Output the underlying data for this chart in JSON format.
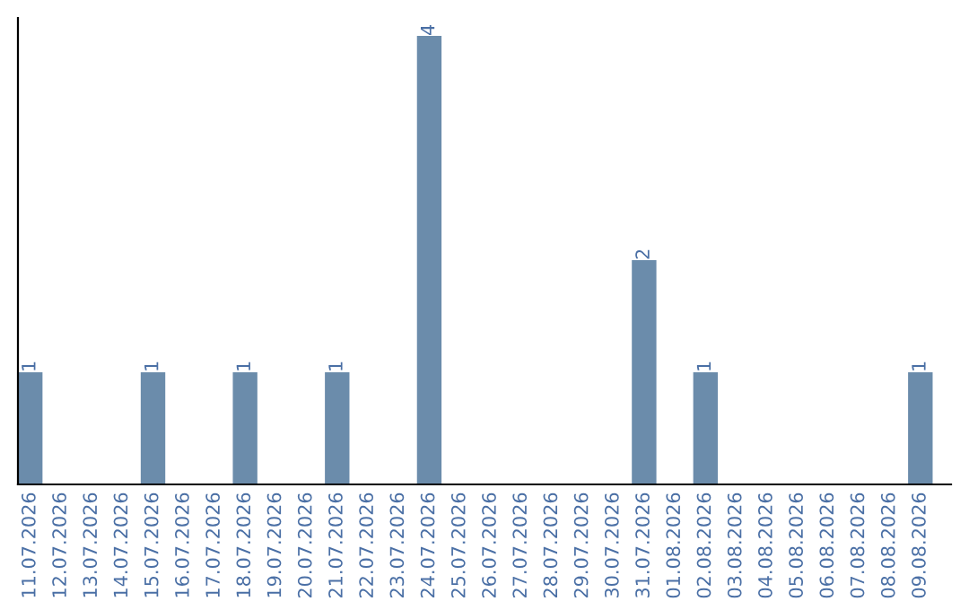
{
  "chart_data": {
    "type": "bar",
    "categories": [
      "11.07.2026",
      "12.07.2026",
      "13.07.2026",
      "14.07.2026",
      "15.07.2026",
      "16.07.2026",
      "17.07.2026",
      "18.07.2026",
      "19.07.2026",
      "20.07.2026",
      "21.07.2026",
      "22.07.2026",
      "23.07.2026",
      "24.07.2026",
      "25.07.2026",
      "26.07.2026",
      "27.07.2026",
      "28.07.2026",
      "29.07.2026",
      "30.07.2026",
      "31.07.2026",
      "01.08.2026",
      "02.08.2026",
      "03.08.2026",
      "04.08.2026",
      "05.08.2026",
      "06.08.2026",
      "07.08.2026",
      "08.08.2026",
      "09.08.2026"
    ],
    "values": [
      1,
      0,
      0,
      0,
      1,
      0,
      0,
      1,
      0,
      0,
      1,
      0,
      0,
      4,
      0,
      0,
      0,
      0,
      0,
      0,
      2,
      0,
      1,
      0,
      0,
      0,
      0,
      0,
      0,
      1
    ],
    "value_labels": [
      "1",
      null,
      null,
      null,
      "1",
      null,
      null,
      "1",
      null,
      null,
      "1",
      null,
      null,
      "4",
      null,
      null,
      null,
      null,
      null,
      null,
      "2",
      null,
      "1",
      null,
      null,
      null,
      null,
      null,
      null,
      "1"
    ],
    "color": "#6b8cab",
    "grid": false,
    "legend": false
  }
}
